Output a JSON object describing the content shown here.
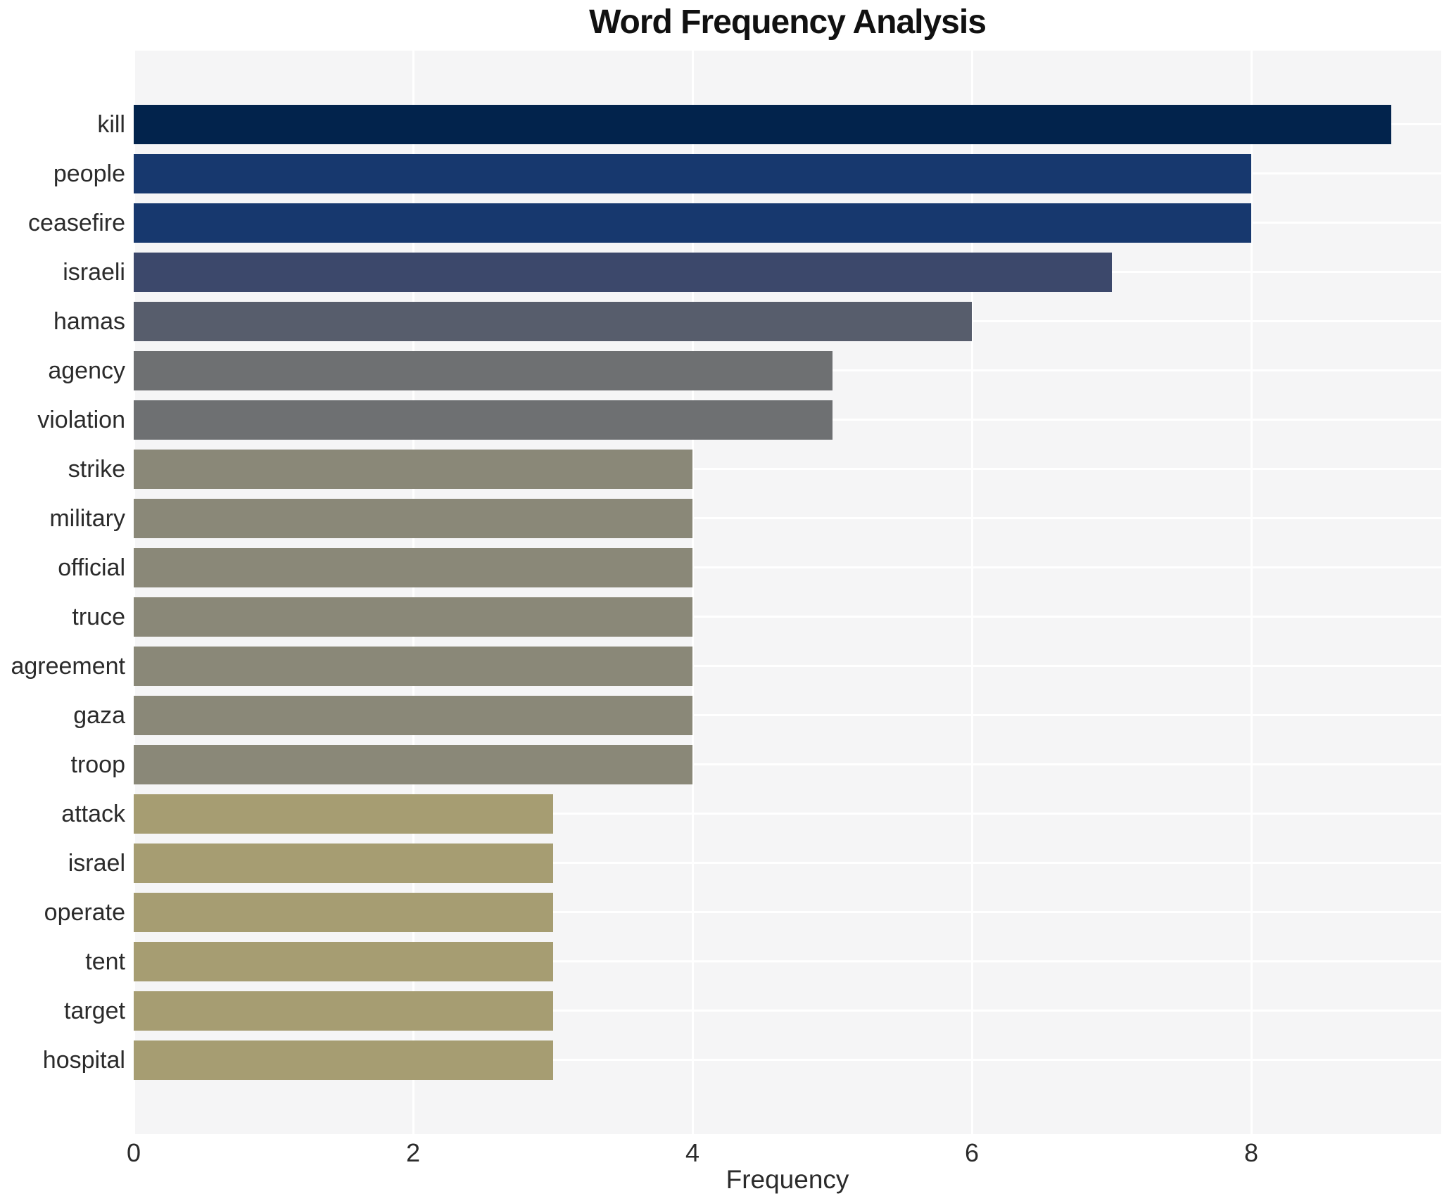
{
  "figure": {
    "background": "#ffffff",
    "plot_background": "#f5f5f6",
    "grid_color": "#ffffff",
    "text_color": "#2b2b2b"
  },
  "chart_data": {
    "type": "bar",
    "orientation": "horizontal",
    "title": "Word Frequency Analysis",
    "xlabel": "Frequency",
    "ylabel": "",
    "xlim": [
      0,
      9.36
    ],
    "xticks": [
      0,
      2,
      4,
      6,
      8
    ],
    "grid": true,
    "legend": false,
    "categories": [
      "kill",
      "people",
      "ceasefire",
      "israeli",
      "hamas",
      "agency",
      "violation",
      "strike",
      "military",
      "official",
      "truce",
      "agreement",
      "gaza",
      "troop",
      "attack",
      "israel",
      "operate",
      "tent",
      "target",
      "hospital"
    ],
    "values": [
      9,
      8,
      8,
      7,
      6,
      5,
      5,
      4,
      4,
      4,
      4,
      4,
      4,
      4,
      3,
      3,
      3,
      3,
      3,
      3
    ],
    "bar_colors": [
      "#02234c",
      "#17386e",
      "#17386e",
      "#3c486b",
      "#575d6c",
      "#6e7072",
      "#6e7072",
      "#8a8878",
      "#8a8878",
      "#8a8878",
      "#8a8878",
      "#8a8878",
      "#8a8878",
      "#8a8878",
      "#a69d72",
      "#a69d72",
      "#a69d72",
      "#a69d72",
      "#a69d72",
      "#a69d72"
    ]
  }
}
